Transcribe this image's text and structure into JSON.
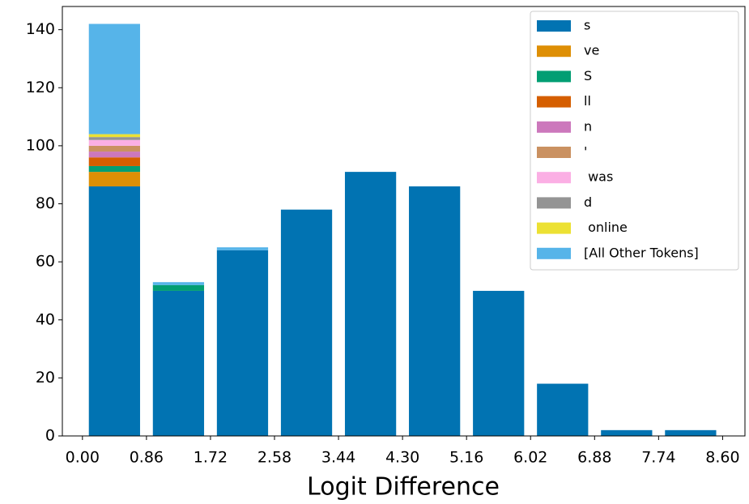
{
  "chart_data": {
    "type": "histogram",
    "x_label": "Logit Difference",
    "bins": [
      0,
      0.86,
      1.72,
      2.58,
      3.44,
      4.3,
      5.16,
      6.02,
      6.88,
      7.74,
      8.6
    ],
    "series": [
      {
        "name": "s",
        "color": "#0173b2",
        "values": [
          86,
          50,
          64,
          78,
          91,
          86,
          50,
          18,
          2,
          2
        ]
      },
      {
        "name": "ve",
        "color": "#de8f05",
        "values": [
          5,
          0,
          0,
          0,
          0,
          0,
          0,
          0,
          0,
          0
        ]
      },
      {
        "name": "S",
        "color": "#029e73",
        "values": [
          2,
          2,
          0,
          0,
          0,
          0,
          0,
          0,
          0,
          0
        ]
      },
      {
        "name": "ll",
        "color": "#d55e00",
        "values": [
          3,
          0,
          0,
          0,
          0,
          0,
          0,
          0,
          0,
          0
        ]
      },
      {
        "name": "n",
        "color": "#cc78bc",
        "values": [
          2,
          0,
          0,
          0,
          0,
          0,
          0,
          0,
          0,
          0
        ]
      },
      {
        "name": "'",
        "color": "#ca9161",
        "values": [
          2,
          0,
          0,
          0,
          0,
          0,
          0,
          0,
          0,
          0
        ]
      },
      {
        "name": " was",
        "color": "#fbafe4",
        "values": [
          2,
          0,
          0,
          0,
          0,
          0,
          0,
          0,
          0,
          0
        ]
      },
      {
        "name": "d",
        "color": "#949494",
        "values": [
          1,
          0,
          0,
          0,
          0,
          0,
          0,
          0,
          0,
          0
        ]
      },
      {
        "name": " online",
        "color": "#ece133",
        "values": [
          1,
          0,
          0,
          0,
          0,
          0,
          0,
          0,
          0,
          0
        ]
      },
      {
        "name": "[All Other Tokens]",
        "color": "#56b4e9",
        "values": [
          38,
          1,
          1,
          0,
          0,
          0,
          0,
          0,
          0,
          0
        ]
      }
    ],
    "xlim": [
      -0.27,
      8.9
    ],
    "ylim": [
      0,
      148
    ],
    "xticks": [
      {
        "value": 0,
        "label": "0.00"
      },
      0.86,
      1.72,
      2.58,
      3.44,
      {
        "value": 4.3,
        "label": "4.30"
      },
      5.16,
      6.02,
      6.88,
      7.74,
      {
        "value": 8.6,
        "label": "8.60"
      }
    ],
    "yticks": [
      0,
      20,
      40,
      60,
      80,
      100,
      120,
      140
    ],
    "legend": "upper right"
  }
}
